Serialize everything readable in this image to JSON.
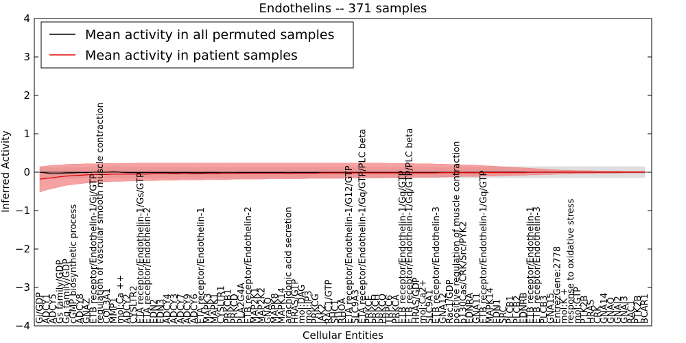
{
  "chart_data": {
    "type": "line",
    "title": "Endothelins -- 371 samples",
    "xlabel": "Cellular Entities",
    "ylabel": "Inferred Activity",
    "ylim": [
      -4,
      4
    ],
    "yticks": [
      -4,
      -3,
      -2,
      -1,
      0,
      1,
      2,
      3,
      4
    ],
    "ytick_labels": [
      "−4",
      "−3",
      "−2",
      "−1",
      "0",
      "1",
      "2",
      "3",
      "4"
    ],
    "legend": {
      "position": "top-left",
      "entries": [
        {
          "label": "Mean activity in all permuted samples",
          "color": "#000000"
        },
        {
          "label": "Mean activity in patient samples",
          "color": "#e00000"
        }
      ]
    },
    "colors": {
      "permuted_line": "#000000",
      "patient_line": "#e00000",
      "patient_band": "#f47a7a",
      "permuted_band": "#c8c8c8"
    },
    "entities": [
      "Gi/GDP",
      "ADCY1",
      "ADCY5",
      "Gs family/GDP",
      "Gq family/GDP",
      "cGMP biosynthetic process",
      "ADCY8",
      "GNAZ",
      "ETB receptor/Endothelin-1/Gi/GTP",
      "regulation of vascular smooth muscle contraction",
      "COL3A1",
      "MMP1",
      "mol:Ca ++",
      "ADCY2",
      "CYSLTR2",
      "ETA receptor/Endothelin-1/Gs/GTP",
      "ETA receptor/Endothelin-2",
      "EDN2",
      "EDN3",
      "ADCY4",
      "ADCY3",
      "ADCY7",
      "ADCY9",
      "ADCY6",
      "ETA receptor/Endothelin-1",
      "MAPK3",
      "MAPK1",
      "CYSLTR1",
      "PRKCB1",
      "PRKCD",
      "PLA2G4A",
      "ETB receptor/Endothelin-2",
      "MAP2K1",
      "MAP2K2",
      "GNAQ",
      "MAPK8",
      "MAPK14",
      "arachidonic acid secretion",
      "HRAS/GTP",
      "mol:DAG",
      "mol:IP3",
      "PRKCG",
      "JAK2",
      "RAC1/GTP",
      "SHC1",
      "RHOA",
      "ETA receptor/Endothelin-1/G12/GTP",
      "SLC9A3",
      "ETA receptor/Endothelin-1/Gq/GTP/PLC beta",
      "PRKCE",
      "PRKCH",
      "PRKCQ",
      "TRPC6",
      "PRKCA",
      "ETB receptor/Endothelin-1/Gq/GTP",
      "ETB receptor/Endothelin-1/Gq/GTP/PLC beta",
      "HRAS/GDP",
      "mol:Ca2+",
      "SLC9A1",
      "ETB receptor/Endothelin-3",
      "GNA12",
      "Rac1/GDP",
      "positive regulation of muscle contraction",
      "p130Cas/CRK/Src/PYK2",
      "EDNRA",
      "GNA11",
      "ETB receptor/Endothelin-1/Gq/GTP",
      "MAPK14",
      "EDN1",
      "SRC",
      "PLCB1",
      "PLCB2",
      "EDNRB",
      "ETB receptor/Endothelin-1",
      "ETB receptor/Endothelin-3",
      "PLCB3",
      "GNA15",
      "EntrezGene:2778",
      "mol:K +",
      "response to oxidative stress",
      "mol:GTP",
      "PTK2B",
      "HRAS",
      "CRK",
      "GNA14",
      "GNAQ",
      "GNAI2",
      "GNAI3",
      "RAC1",
      "PTK2B",
      "BCAR1"
    ],
    "series": [
      {
        "name": "Mean activity in all permuted samples",
        "values": [
          0.0,
          -0.02,
          -0.04,
          -0.03,
          -0.02,
          -0.02,
          -0.01,
          -0.01,
          0.0,
          0.0,
          0.0,
          0.01,
          0.0,
          -0.01,
          -0.01,
          -0.01,
          -0.01,
          -0.01,
          -0.01,
          -0.01,
          -0.02,
          -0.01,
          -0.01,
          -0.02,
          -0.02,
          -0.01,
          -0.01,
          -0.02,
          -0.02,
          -0.02,
          -0.01,
          -0.01,
          -0.01,
          -0.01,
          -0.01,
          -0.01,
          -0.01,
          -0.02,
          -0.01,
          -0.01,
          -0.01,
          -0.01,
          -0.01,
          -0.01,
          -0.01,
          -0.01,
          -0.01,
          -0.01,
          -0.01,
          -0.01,
          -0.01,
          -0.01,
          -0.01,
          -0.01,
          -0.01,
          -0.01,
          -0.01,
          -0.01,
          -0.01,
          -0.01,
          -0.01,
          -0.01,
          -0.01,
          -0.01,
          -0.01,
          -0.01,
          0.0,
          0.0,
          0.0,
          0.0,
          0.0,
          0.0,
          0.0,
          0.0,
          0.0,
          0.0,
          0.0,
          0.0,
          0.0,
          0.0,
          0.0,
          0.0,
          0.0,
          0.0,
          0.0,
          0.0,
          0.0,
          0.0,
          0.0,
          0.0,
          0.0
        ],
        "band": 0.15
      },
      {
        "name": "Mean activity in patient samples",
        "values": [
          -0.18,
          -0.16,
          -0.14,
          -0.12,
          -0.1,
          -0.09,
          -0.08,
          -0.07,
          -0.06,
          -0.06,
          -0.06,
          -0.05,
          -0.05,
          -0.05,
          -0.05,
          -0.05,
          -0.05,
          -0.04,
          -0.04,
          -0.04,
          -0.04,
          -0.04,
          -0.04,
          -0.04,
          -0.04,
          -0.04,
          -0.04,
          -0.03,
          -0.03,
          -0.03,
          -0.03,
          -0.03,
          -0.03,
          -0.03,
          -0.03,
          -0.03,
          -0.03,
          -0.03,
          -0.03,
          -0.03,
          -0.03,
          -0.03,
          -0.02,
          -0.02,
          -0.02,
          -0.02,
          -0.02,
          -0.02,
          -0.02,
          -0.02,
          -0.02,
          -0.02,
          -0.02,
          -0.02,
          -0.02,
          -0.02,
          -0.02,
          -0.02,
          -0.02,
          -0.02,
          -0.01,
          -0.01,
          -0.01,
          -0.01,
          -0.01,
          -0.01,
          -0.01,
          -0.01,
          -0.01,
          -0.01,
          -0.01,
          -0.01,
          -0.01,
          0.0,
          0.0,
          0.0,
          0.0,
          0.0,
          0.0,
          0.0,
          0.0,
          0.0,
          0.0,
          0.0,
          0.0,
          0.0,
          0.0,
          0.0,
          0.0,
          0.0,
          0.0
        ],
        "band_low": [
          -0.52,
          -0.46,
          -0.42,
          -0.38,
          -0.34,
          -0.32,
          -0.3,
          -0.28,
          -0.27,
          -0.26,
          -0.25,
          -0.24,
          -0.24,
          -0.23,
          -0.23,
          -0.22,
          -0.22,
          -0.22,
          -0.21,
          -0.21,
          -0.21,
          -0.2,
          -0.2,
          -0.2,
          -0.2,
          -0.19,
          -0.19,
          -0.19,
          -0.19,
          -0.18,
          -0.18,
          -0.18,
          -0.18,
          -0.18,
          -0.17,
          -0.17,
          -0.17,
          -0.17,
          -0.17,
          -0.17,
          -0.16,
          -0.16,
          -0.16,
          -0.16,
          -0.16,
          -0.16,
          -0.15,
          -0.15,
          -0.15,
          -0.15,
          -0.15,
          -0.14,
          -0.14,
          -0.14,
          -0.14,
          -0.14,
          -0.13,
          -0.13,
          -0.13,
          -0.13,
          -0.12,
          -0.12,
          -0.12,
          -0.11,
          -0.11,
          -0.11,
          -0.1,
          -0.1,
          -0.1,
          -0.09,
          -0.09,
          -0.08,
          -0.08,
          -0.07,
          -0.07,
          -0.06,
          -0.06,
          -0.05,
          -0.05,
          -0.05,
          -0.04,
          -0.04,
          -0.04,
          -0.03,
          -0.03,
          -0.03,
          -0.03,
          -0.02,
          -0.02,
          -0.02,
          -0.02
        ],
        "band_high": [
          0.14,
          0.16,
          0.18,
          0.19,
          0.2,
          0.21,
          0.21,
          0.22,
          0.22,
          0.22,
          0.23,
          0.23,
          0.23,
          0.23,
          0.23,
          0.24,
          0.24,
          0.24,
          0.24,
          0.24,
          0.24,
          0.24,
          0.24,
          0.24,
          0.24,
          0.24,
          0.24,
          0.24,
          0.24,
          0.24,
          0.24,
          0.24,
          0.24,
          0.24,
          0.24,
          0.24,
          0.24,
          0.24,
          0.24,
          0.24,
          0.24,
          0.24,
          0.24,
          0.24,
          0.24,
          0.24,
          0.24,
          0.24,
          0.24,
          0.24,
          0.24,
          0.24,
          0.23,
          0.23,
          0.23,
          0.23,
          0.22,
          0.22,
          0.22,
          0.21,
          0.21,
          0.2,
          0.2,
          0.19,
          0.19,
          0.18,
          0.17,
          0.16,
          0.15,
          0.14,
          0.13,
          0.12,
          0.11,
          0.1,
          0.09,
          0.08,
          0.07,
          0.06,
          0.05,
          0.05,
          0.04,
          0.04,
          0.04,
          0.03,
          0.03,
          0.03,
          0.03,
          0.02,
          0.02,
          0.02,
          0.02
        ]
      }
    ]
  }
}
